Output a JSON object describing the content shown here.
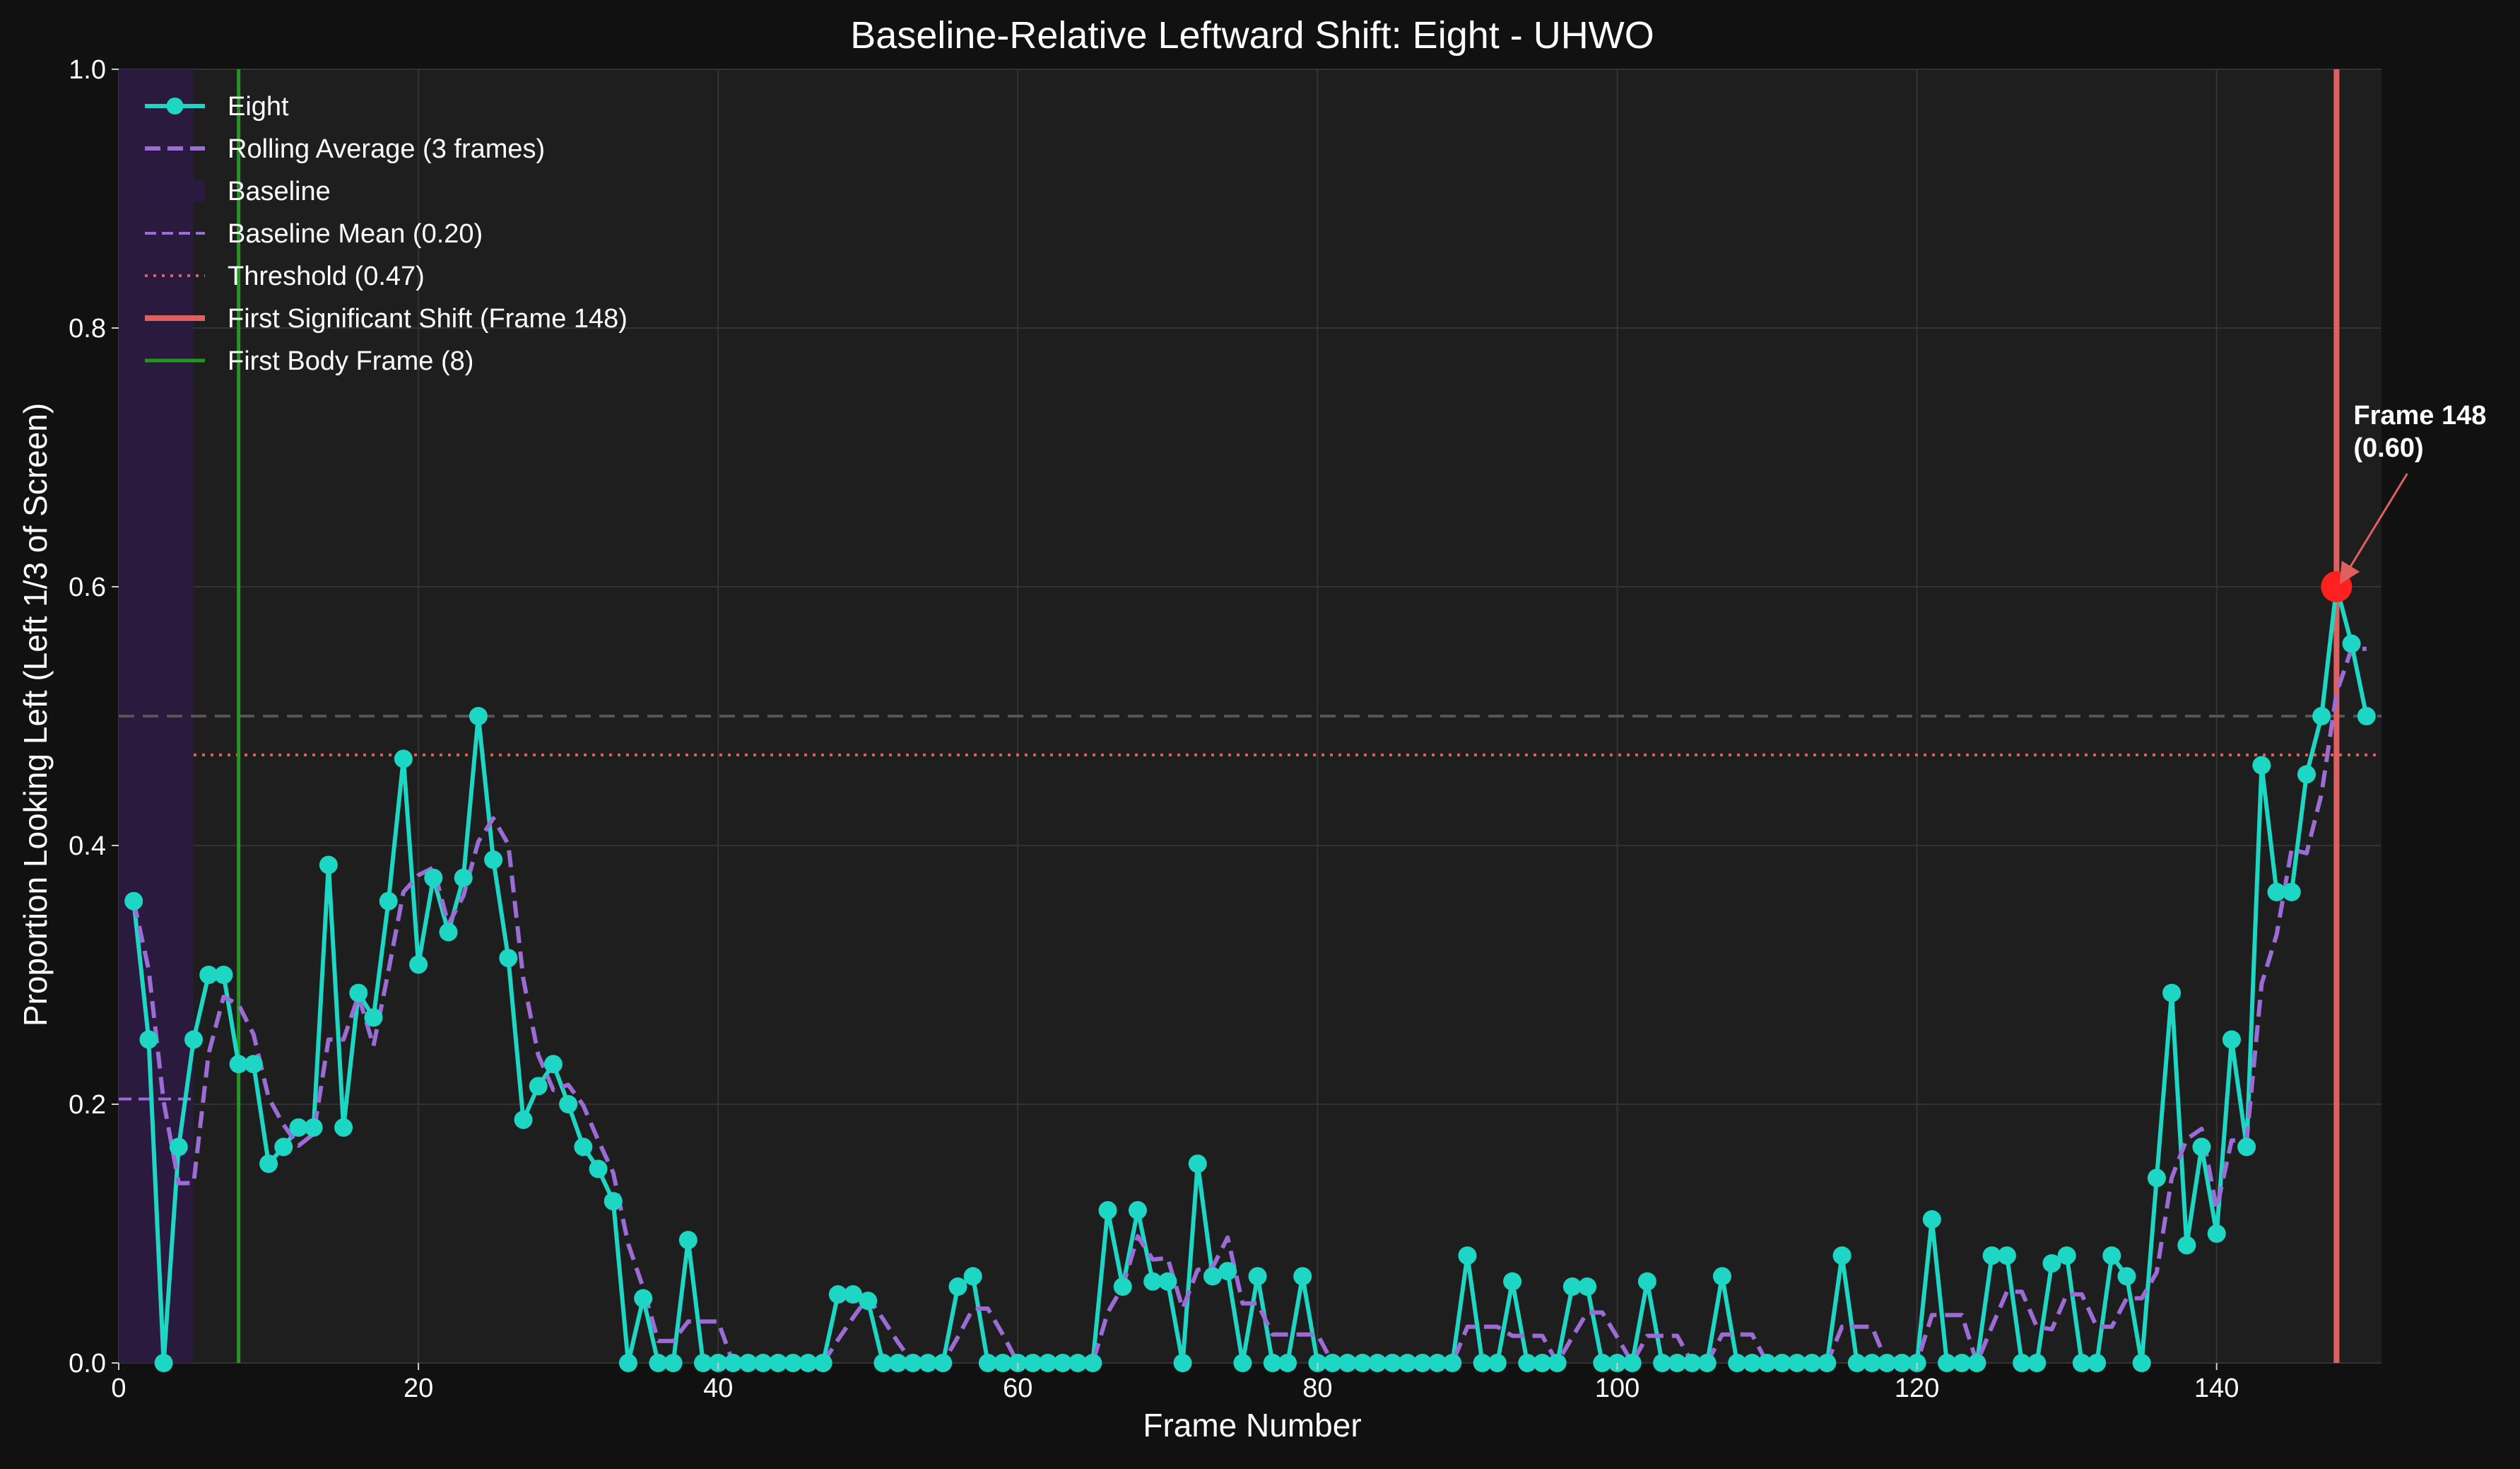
{
  "chart_data": {
    "type": "line",
    "title": "Baseline-Relative Leftward Shift: Eight - UHWO",
    "xlabel": "Frame Number",
    "ylabel": "Proportion Looking Left (Left 1/3 of Screen)",
    "xlim": [
      0,
      151
    ],
    "ylim": [
      0,
      1.0
    ],
    "x_ticks": [
      0,
      20,
      40,
      60,
      80,
      100,
      120,
      140
    ],
    "y_ticks": [
      0.0,
      0.2,
      0.4,
      0.6,
      0.8,
      1.0
    ],
    "y_tick_labels": [
      "0.0",
      "0.2",
      "0.4",
      "0.6",
      "0.8",
      "1.0"
    ],
    "grid": true,
    "legend_position": "top-left",
    "background_color": "#1e1e1e",
    "colors": {
      "series": "#1ed6c4",
      "rolling": "#9b6bd6",
      "baseline_span": "#2a1a40",
      "threshold": "#e06060",
      "shift_line": "#e06060",
      "body_frame": "#1f9a1f",
      "half_line": "#555555",
      "peak_marker": "#ff2020"
    },
    "series": [
      {
        "name": "Eight",
        "x": [
          1,
          2,
          3,
          4,
          5,
          6,
          7,
          8,
          9,
          10,
          11,
          12,
          13,
          14,
          15,
          16,
          17,
          18,
          19,
          20,
          21,
          22,
          23,
          24,
          25,
          26,
          27,
          28,
          29,
          30,
          31,
          32,
          33,
          34,
          35,
          36,
          37,
          38,
          39,
          40,
          41,
          42,
          43,
          44,
          45,
          46,
          47,
          48,
          49,
          50,
          51,
          52,
          53,
          54,
          55,
          56,
          57,
          58,
          59,
          60,
          61,
          62,
          63,
          64,
          65,
          66,
          67,
          68,
          69,
          70,
          71,
          72,
          73,
          74,
          75,
          76,
          77,
          78,
          79,
          80,
          81,
          82,
          83,
          84,
          85,
          86,
          87,
          88,
          89,
          90,
          91,
          92,
          93,
          94,
          95,
          96,
          97,
          98,
          99,
          100,
          101,
          102,
          103,
          104,
          105,
          106,
          107,
          108,
          109,
          110,
          111,
          112,
          113,
          114,
          115,
          116,
          117,
          118,
          119,
          120,
          121,
          122,
          123,
          124,
          125,
          126,
          127,
          128,
          129,
          130,
          131,
          132,
          133,
          134,
          135,
          136,
          137,
          138,
          139,
          140,
          141,
          142,
          143,
          144,
          145,
          146,
          147,
          148,
          149,
          150
        ],
        "values": [
          0.357,
          0.25,
          0.0,
          0.167,
          0.25,
          0.3,
          0.3,
          0.231,
          0.231,
          0.154,
          0.167,
          0.182,
          0.182,
          0.385,
          0.182,
          0.286,
          0.267,
          0.357,
          0.467,
          0.308,
          0.375,
          0.333,
          0.375,
          0.5,
          0.389,
          0.313,
          0.188,
          0.214,
          0.231,
          0.2,
          0.167,
          0.15,
          0.125,
          0.0,
          0.05,
          0.0,
          0.0,
          0.095,
          0.0,
          0.0,
          0.0,
          0.0,
          0.0,
          0.0,
          0.0,
          0.0,
          0.0,
          0.053,
          0.053,
          0.048,
          0.0,
          0.0,
          0.0,
          0.0,
          0.0,
          0.059,
          0.067,
          0.0,
          0.0,
          0.0,
          0.0,
          0.0,
          0.0,
          0.0,
          0.0,
          0.118,
          0.059,
          0.118,
          0.063,
          0.063,
          0.0,
          0.154,
          0.067,
          0.071,
          0.0,
          0.067,
          0.0,
          0.0,
          0.067,
          0.0,
          0.0,
          0.0,
          0.0,
          0.0,
          0.0,
          0.0,
          0.0,
          0.0,
          0.0,
          0.083,
          0.0,
          0.0,
          0.063,
          0.0,
          0.0,
          0.0,
          0.059,
          0.059,
          0.0,
          0.0,
          0.0,
          0.063,
          0.0,
          0.0,
          0.0,
          0.0,
          0.067,
          0.0,
          0.0,
          0.0,
          0.0,
          0.0,
          0.0,
          0.0,
          0.083,
          0.0,
          0.0,
          0.0,
          0.0,
          0.0,
          0.111,
          0.0,
          0.0,
          0.0,
          0.083,
          0.083,
          0.0,
          0.0,
          0.077,
          0.083,
          0.0,
          0.0,
          0.083,
          0.067,
          0.0,
          0.143,
          0.286,
          0.091,
          0.167,
          0.1,
          0.25,
          0.167,
          0.462,
          0.364,
          0.364,
          0.455,
          0.5,
          0.6,
          0.556,
          0.5
        ]
      },
      {
        "name": "Rolling Average (3 frames)",
        "x": [
          1,
          2,
          3,
          4,
          5,
          6,
          7,
          8,
          9,
          10,
          11,
          12,
          13,
          14,
          15,
          16,
          17,
          18,
          19,
          20,
          21,
          22,
          23,
          24,
          25,
          26,
          27,
          28,
          29,
          30,
          31,
          32,
          33,
          34,
          35,
          36,
          37,
          38,
          39,
          40,
          41,
          42,
          43,
          44,
          45,
          46,
          47,
          48,
          49,
          50,
          51,
          52,
          53,
          54,
          55,
          56,
          57,
          58,
          59,
          60,
          61,
          62,
          63,
          64,
          65,
          66,
          67,
          68,
          69,
          70,
          71,
          72,
          73,
          74,
          75,
          76,
          77,
          78,
          79,
          80,
          81,
          82,
          83,
          84,
          85,
          86,
          87,
          88,
          89,
          90,
          91,
          92,
          93,
          94,
          95,
          96,
          97,
          98,
          99,
          100,
          101,
          102,
          103,
          104,
          105,
          106,
          107,
          108,
          109,
          110,
          111,
          112,
          113,
          114,
          115,
          116,
          117,
          118,
          119,
          120,
          121,
          122,
          123,
          124,
          125,
          126,
          127,
          128,
          129,
          130,
          131,
          132,
          133,
          134,
          135,
          136,
          137,
          138,
          139,
          140,
          141,
          142,
          143,
          144,
          145,
          146,
          147,
          148,
          149,
          150
        ],
        "values": [
          0.357,
          0.304,
          0.202,
          0.139,
          0.139,
          0.239,
          0.283,
          0.277,
          0.254,
          0.205,
          0.184,
          0.168,
          0.177,
          0.25,
          0.25,
          0.284,
          0.245,
          0.303,
          0.364,
          0.377,
          0.383,
          0.339,
          0.361,
          0.403,
          0.421,
          0.401,
          0.297,
          0.238,
          0.211,
          0.215,
          0.199,
          0.172,
          0.147,
          0.092,
          0.058,
          0.017,
          0.017,
          0.032,
          0.032,
          0.032,
          0.0,
          0.0,
          0.0,
          0.0,
          0.0,
          0.0,
          0.0,
          0.018,
          0.035,
          0.051,
          0.034,
          0.016,
          0.0,
          0.0,
          0.0,
          0.02,
          0.042,
          0.042,
          0.022,
          0.0,
          0.0,
          0.0,
          0.0,
          0.0,
          0.0,
          0.039,
          0.059,
          0.098,
          0.08,
          0.081,
          0.042,
          0.072,
          0.074,
          0.097,
          0.046,
          0.046,
          0.022,
          0.022,
          0.022,
          0.022,
          0.0,
          0.0,
          0.0,
          0.0,
          0.0,
          0.0,
          0.0,
          0.0,
          0.0,
          0.028,
          0.028,
          0.028,
          0.021,
          0.021,
          0.021,
          0.0,
          0.02,
          0.039,
          0.039,
          0.02,
          0.0,
          0.021,
          0.021,
          0.021,
          0.0,
          0.0,
          0.022,
          0.022,
          0.022,
          0.0,
          0.0,
          0.0,
          0.0,
          0.0,
          0.028,
          0.028,
          0.028,
          0.0,
          0.0,
          0.0,
          0.037,
          0.037,
          0.037,
          0.0,
          0.028,
          0.055,
          0.055,
          0.028,
          0.026,
          0.053,
          0.053,
          0.028,
          0.028,
          0.05,
          0.05,
          0.07,
          0.143,
          0.173,
          0.181,
          0.119,
          0.172,
          0.172,
          0.293,
          0.331,
          0.397,
          0.394,
          0.44,
          0.518,
          0.552,
          0.552
        ]
      }
    ],
    "baseline": {
      "label": "Baseline",
      "x_range": [
        0,
        5
      ]
    },
    "baseline_mean": {
      "label": "Baseline Mean (0.20)",
      "value": 0.204,
      "x_range": [
        0,
        5
      ]
    },
    "threshold": {
      "label": "Threshold (0.47)",
      "value": 0.47,
      "x_start": 5
    },
    "half_line": {
      "value": 0.5
    },
    "first_significant_shift": {
      "label": "First Significant Shift (Frame 148)",
      "x": 148,
      "y": 0.6
    },
    "first_body_frame": {
      "label": "First Body Frame (8)",
      "x": 8
    },
    "annotation": {
      "line1": "Frame 148",
      "line2": "(0.60)",
      "x": 148,
      "y": 0.6
    }
  }
}
